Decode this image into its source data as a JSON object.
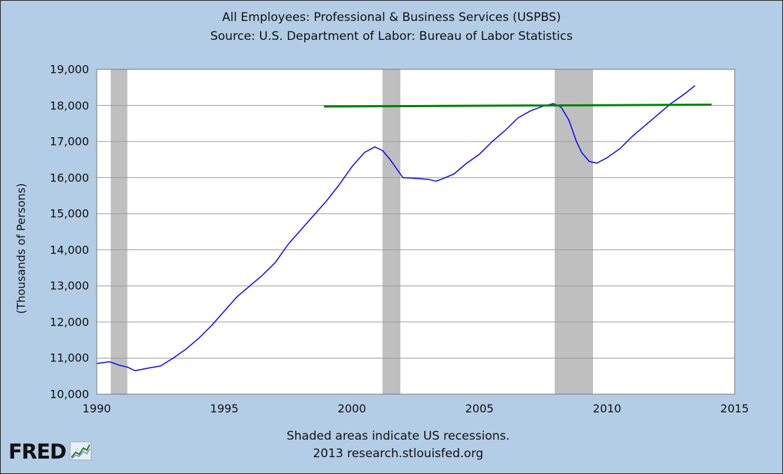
{
  "chart_data": {
    "type": "line",
    "title": "All Employees: Professional & Business Services (USPBS)",
    "subtitle": "Source: U.S. Department of Labor: Bureau of Labor Statistics",
    "xlabel": "",
    "ylabel": "(Thousands of Persons)",
    "xlim": [
      1990,
      2015
    ],
    "ylim": [
      10000,
      19000
    ],
    "xticks": [
      1990,
      1995,
      2000,
      2005,
      2010,
      2015
    ],
    "xtick_labels": [
      "1990",
      "1995",
      "2000",
      "2005",
      "2010",
      "2015"
    ],
    "yticks": [
      10000,
      11000,
      12000,
      13000,
      14000,
      15000,
      16000,
      17000,
      18000,
      19000
    ],
    "ytick_labels": [
      "10,000",
      "11,000",
      "12,000",
      "13,000",
      "14,000",
      "15,000",
      "16,000",
      "17,000",
      "18,000",
      "19,000"
    ],
    "grid": true,
    "recessions": [
      [
        1990.55,
        1991.2
      ],
      [
        2001.2,
        2001.9
      ],
      [
        2007.95,
        2009.45
      ]
    ],
    "series": [
      {
        "color": "#0000ff",
        "x": [
          1990.0,
          1990.5,
          1990.9,
          1991.2,
          1991.5,
          1992.0,
          1992.5,
          1993.0,
          1993.5,
          1994.0,
          1994.5,
          1995.0,
          1995.5,
          1996.0,
          1996.5,
          1997.0,
          1997.5,
          1998.0,
          1998.5,
          1999.0,
          1999.5,
          2000.0,
          2000.5,
          2000.9,
          2001.2,
          2001.5,
          2001.8,
          2002.0,
          2002.5,
          2003.0,
          2003.3,
          2003.6,
          2004.0,
          2004.5,
          2005.0,
          2005.5,
          2006.0,
          2006.5,
          2007.0,
          2007.5,
          2007.9,
          2008.2,
          2008.5,
          2008.8,
          2009.0,
          2009.3,
          2009.6,
          2010.0,
          2010.5,
          2011.0,
          2011.5,
          2012.0,
          2012.5,
          2013.0,
          2013.45
        ],
        "values": [
          10850,
          10900,
          10800,
          10750,
          10650,
          10720,
          10780,
          11000,
          11250,
          11550,
          11900,
          12300,
          12700,
          13000,
          13300,
          13650,
          14150,
          14550,
          14950,
          15350,
          15800,
          16300,
          16700,
          16850,
          16750,
          16500,
          16200,
          16000,
          15980,
          15950,
          15900,
          15980,
          16100,
          16400,
          16650,
          17000,
          17300,
          17650,
          17850,
          17980,
          18050,
          17950,
          17600,
          17000,
          16700,
          16450,
          16400,
          16550,
          16800,
          17150,
          17450,
          17750,
          18050,
          18300,
          18550
        ]
      },
      {
        "color": "#008000",
        "x": [
          1998.9,
          2014.1
        ],
        "values": [
          17970,
          18020
        ]
      }
    ],
    "annotations": [
      "Shaded areas indicate US recessions.",
      "2013 research.stlouisfed.org"
    ]
  },
  "branding": {
    "logo_text": "FRED"
  }
}
